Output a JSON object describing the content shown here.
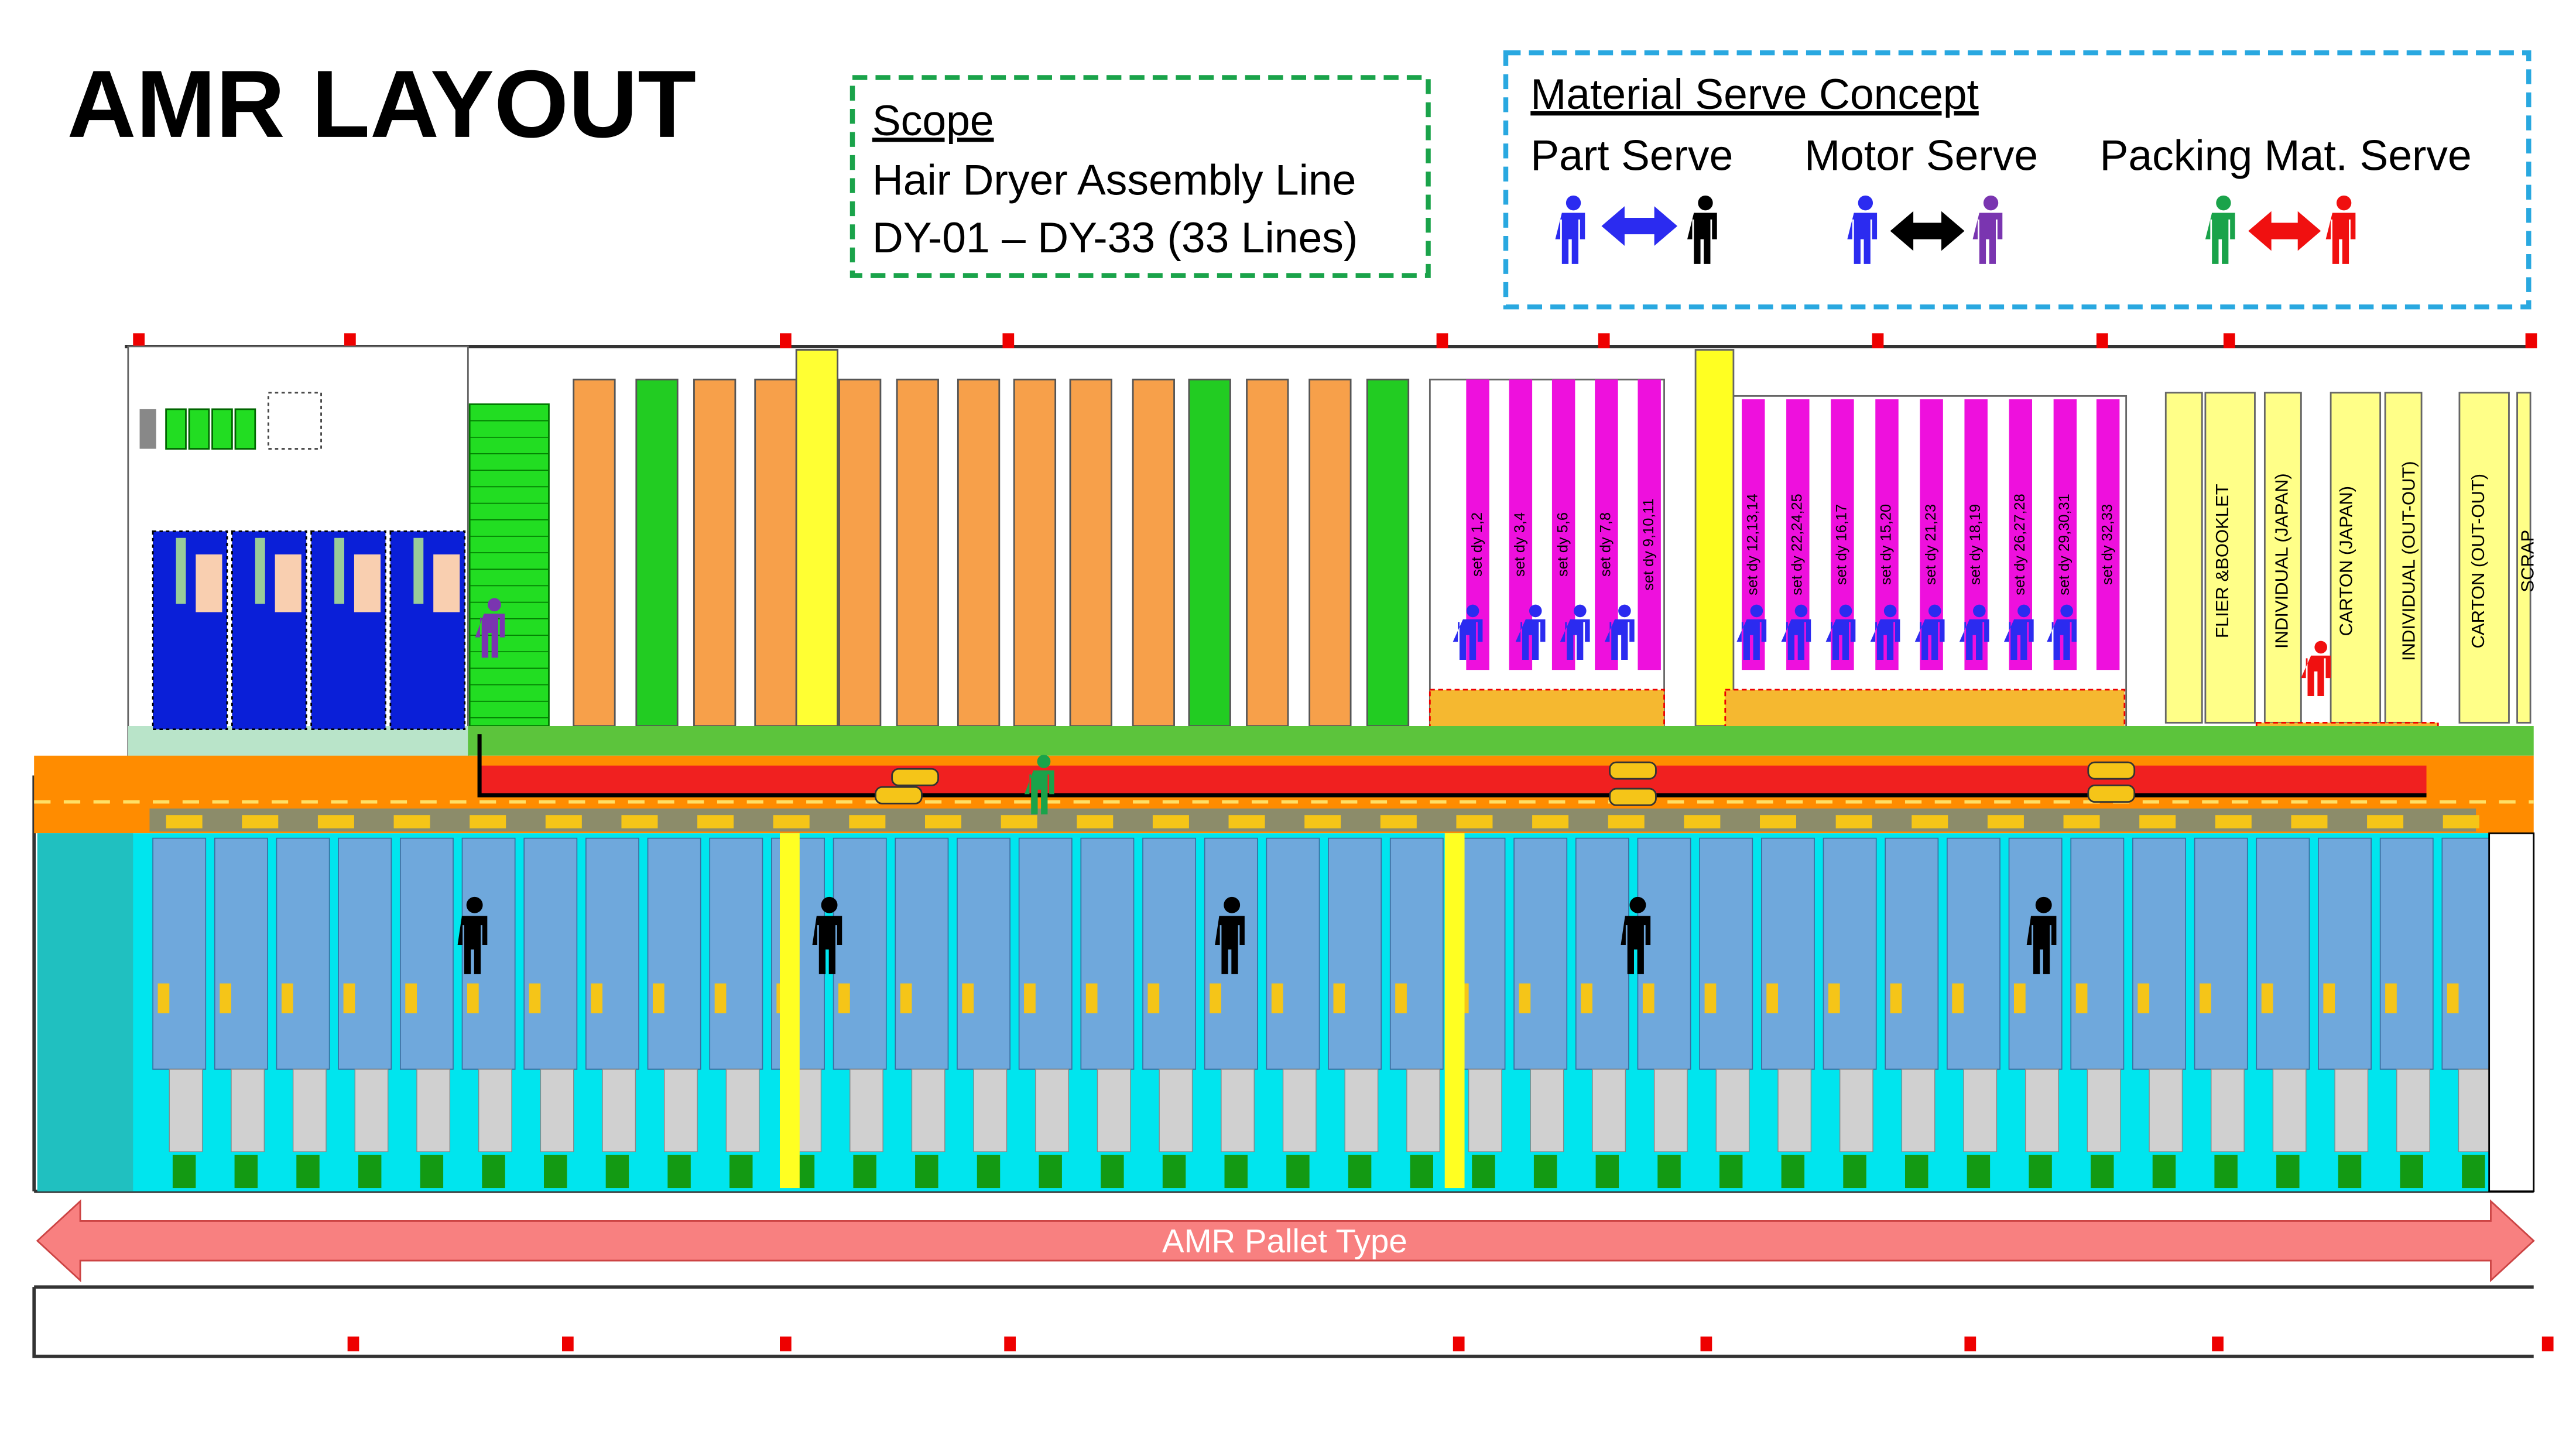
{
  "header": {
    "title": "AMR LAYOUT"
  },
  "scope": {
    "heading": "Scope",
    "lines": [
      "Hair Dryer Assembly Line",
      "DY-01 – DY-33 (33 Lines)"
    ]
  },
  "concept": {
    "heading": "Material Serve Concept",
    "items": [
      "Part Serve",
      "Motor Serve",
      "Packing Mat. Serve"
    ]
  },
  "motor_sets": [
    "set dy 1,2",
    "set dy 3,4",
    "set dy 5,6",
    "set dy 7,8",
    "set dy 9,10,11",
    "set dy 12,13,14",
    "set dy 22,24,25",
    "set dy 16,17",
    "set dy 15,20",
    "set dy 21,23",
    "set dy 18,19",
    "set dy 26,27,28",
    "set dy 29,30,31",
    "set dy 32,33"
  ],
  "packing_racks": [
    "FLIER &BOOKLET",
    "INDIVIDUAL (JAPAN)",
    "CARTON (JAPAN)",
    "INDIVIDUAL (OUT-OUT)",
    "CARTON (OUT-OUT)",
    "SCRAP"
  ],
  "arrow_label": "AMR Pallet Type"
}
